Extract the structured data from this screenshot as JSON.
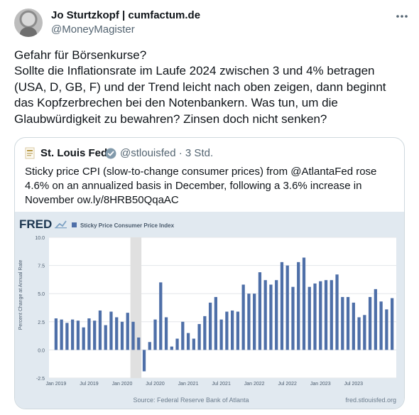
{
  "tweet": {
    "author_name": "Jo Sturtzkopf | cumfactum.de",
    "author_handle": "@MoneyMagister",
    "more_icon": "more-horizontal-icon",
    "text_line1": "Gefahr für Börsenkurse?",
    "text_line2": "Sollte die Inflationsrate im Laufe 2024 zwischen 3 und 4% betragen (USA, D, GB, F) und der Trend leicht nach oben zeigen, dann beginnt das Kopfzerbrechen bei den Notenbankern. Was tun, um die Glaubwürdigkeit zu bewahren? Zinsen doch nicht senken?"
  },
  "quote": {
    "author_name": "St. Louis Fed",
    "author_handle": "@stlouisfed · 3 Std.",
    "verified_icon": "verified-badge-icon",
    "text": "Sticky price CPI (slow-to-change consumer prices) from @AtlantaFed rose 4.6% on an annualized basis in December, following a 3.6% increase in November ow.ly/8HRB50QqaAC"
  },
  "chart_data": {
    "type": "bar",
    "brand": "FRED",
    "legend_label": "Sticky Price Consumer Price Index",
    "ylabel": "Percent Change at Annual Rate",
    "source": "Source: Federal Reserve Bank of Atlanta",
    "site": "fred.stlouisfed.org",
    "ylim": [
      -2.5,
      10.0
    ],
    "yticks": [
      "10.0",
      "7.5",
      "5.0",
      "2.5",
      "0.0",
      "-2.5"
    ],
    "xtick_labels": [
      "Jan 2019",
      "Jul 2019",
      "Jan 2020",
      "Jul 2020",
      "Jan 2021",
      "Jul 2021",
      "Jan 2022",
      "Jul 2022",
      "Jan 2023",
      "Jul 2023"
    ],
    "start": "Jan 2019",
    "frequency": "monthly",
    "recession_shading": [
      "Mar 2020",
      "Apr 2020"
    ],
    "bar_color": "#4e6fa8",
    "values": [
      2.8,
      2.7,
      2.4,
      2.7,
      2.6,
      2.0,
      2.8,
      2.6,
      3.5,
      2.2,
      3.4,
      2.9,
      2.5,
      3.3,
      2.5,
      1.1,
      -1.9,
      0.7,
      2.7,
      6.0,
      2.9,
      0.3,
      1.0,
      2.5,
      1.5,
      1.0,
      2.3,
      3.0,
      4.2,
      4.7,
      2.7,
      3.4,
      3.5,
      3.4,
      5.8,
      5.0,
      5.0,
      6.9,
      6.2,
      5.8,
      6.2,
      7.8,
      7.5,
      5.6,
      7.8,
      8.2,
      5.6,
      5.9,
      6.1,
      6.2,
      6.2,
      6.7,
      4.7,
      4.7,
      4.2,
      2.9,
      3.1,
      4.7,
      5.4,
      4.3,
      3.6,
      4.6
    ]
  }
}
